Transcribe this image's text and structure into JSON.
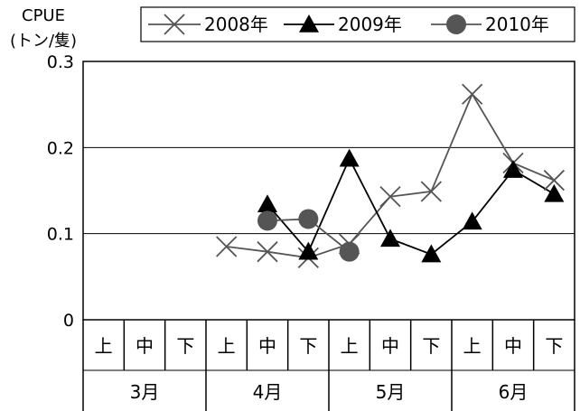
{
  "chart_data": {
    "type": "line",
    "ylabel_line1": "CPUE",
    "ylabel_line2": "(トン/隻)",
    "ylim": [
      0,
      0.3
    ],
    "yticks": [
      "0",
      "0.1",
      "0.2",
      "0.3"
    ],
    "grid": true,
    "legend_position": "top",
    "categories": [
      "上",
      "中",
      "下",
      "上",
      "中",
      "下",
      "上",
      "中",
      "下",
      "上",
      "中",
      "下"
    ],
    "months": [
      "3月",
      "4月",
      "5月",
      "6月"
    ],
    "series": [
      {
        "name": "2008年",
        "marker": "x",
        "color": "#555555",
        "values": [
          null,
          null,
          null,
          0.085,
          0.079,
          0.072,
          0.088,
          0.143,
          0.149,
          0.262,
          0.182,
          0.162
        ]
      },
      {
        "name": "2009年",
        "marker": "triangle",
        "color": "#000000",
        "values": [
          null,
          null,
          null,
          null,
          0.134,
          0.079,
          0.187,
          0.094,
          0.076,
          0.114,
          0.174,
          0.146
        ]
      },
      {
        "name": "2010年",
        "marker": "circle",
        "color": "#555555",
        "values": [
          null,
          null,
          null,
          null,
          0.115,
          0.117,
          0.079,
          null,
          null,
          null,
          null,
          null
        ]
      }
    ]
  }
}
